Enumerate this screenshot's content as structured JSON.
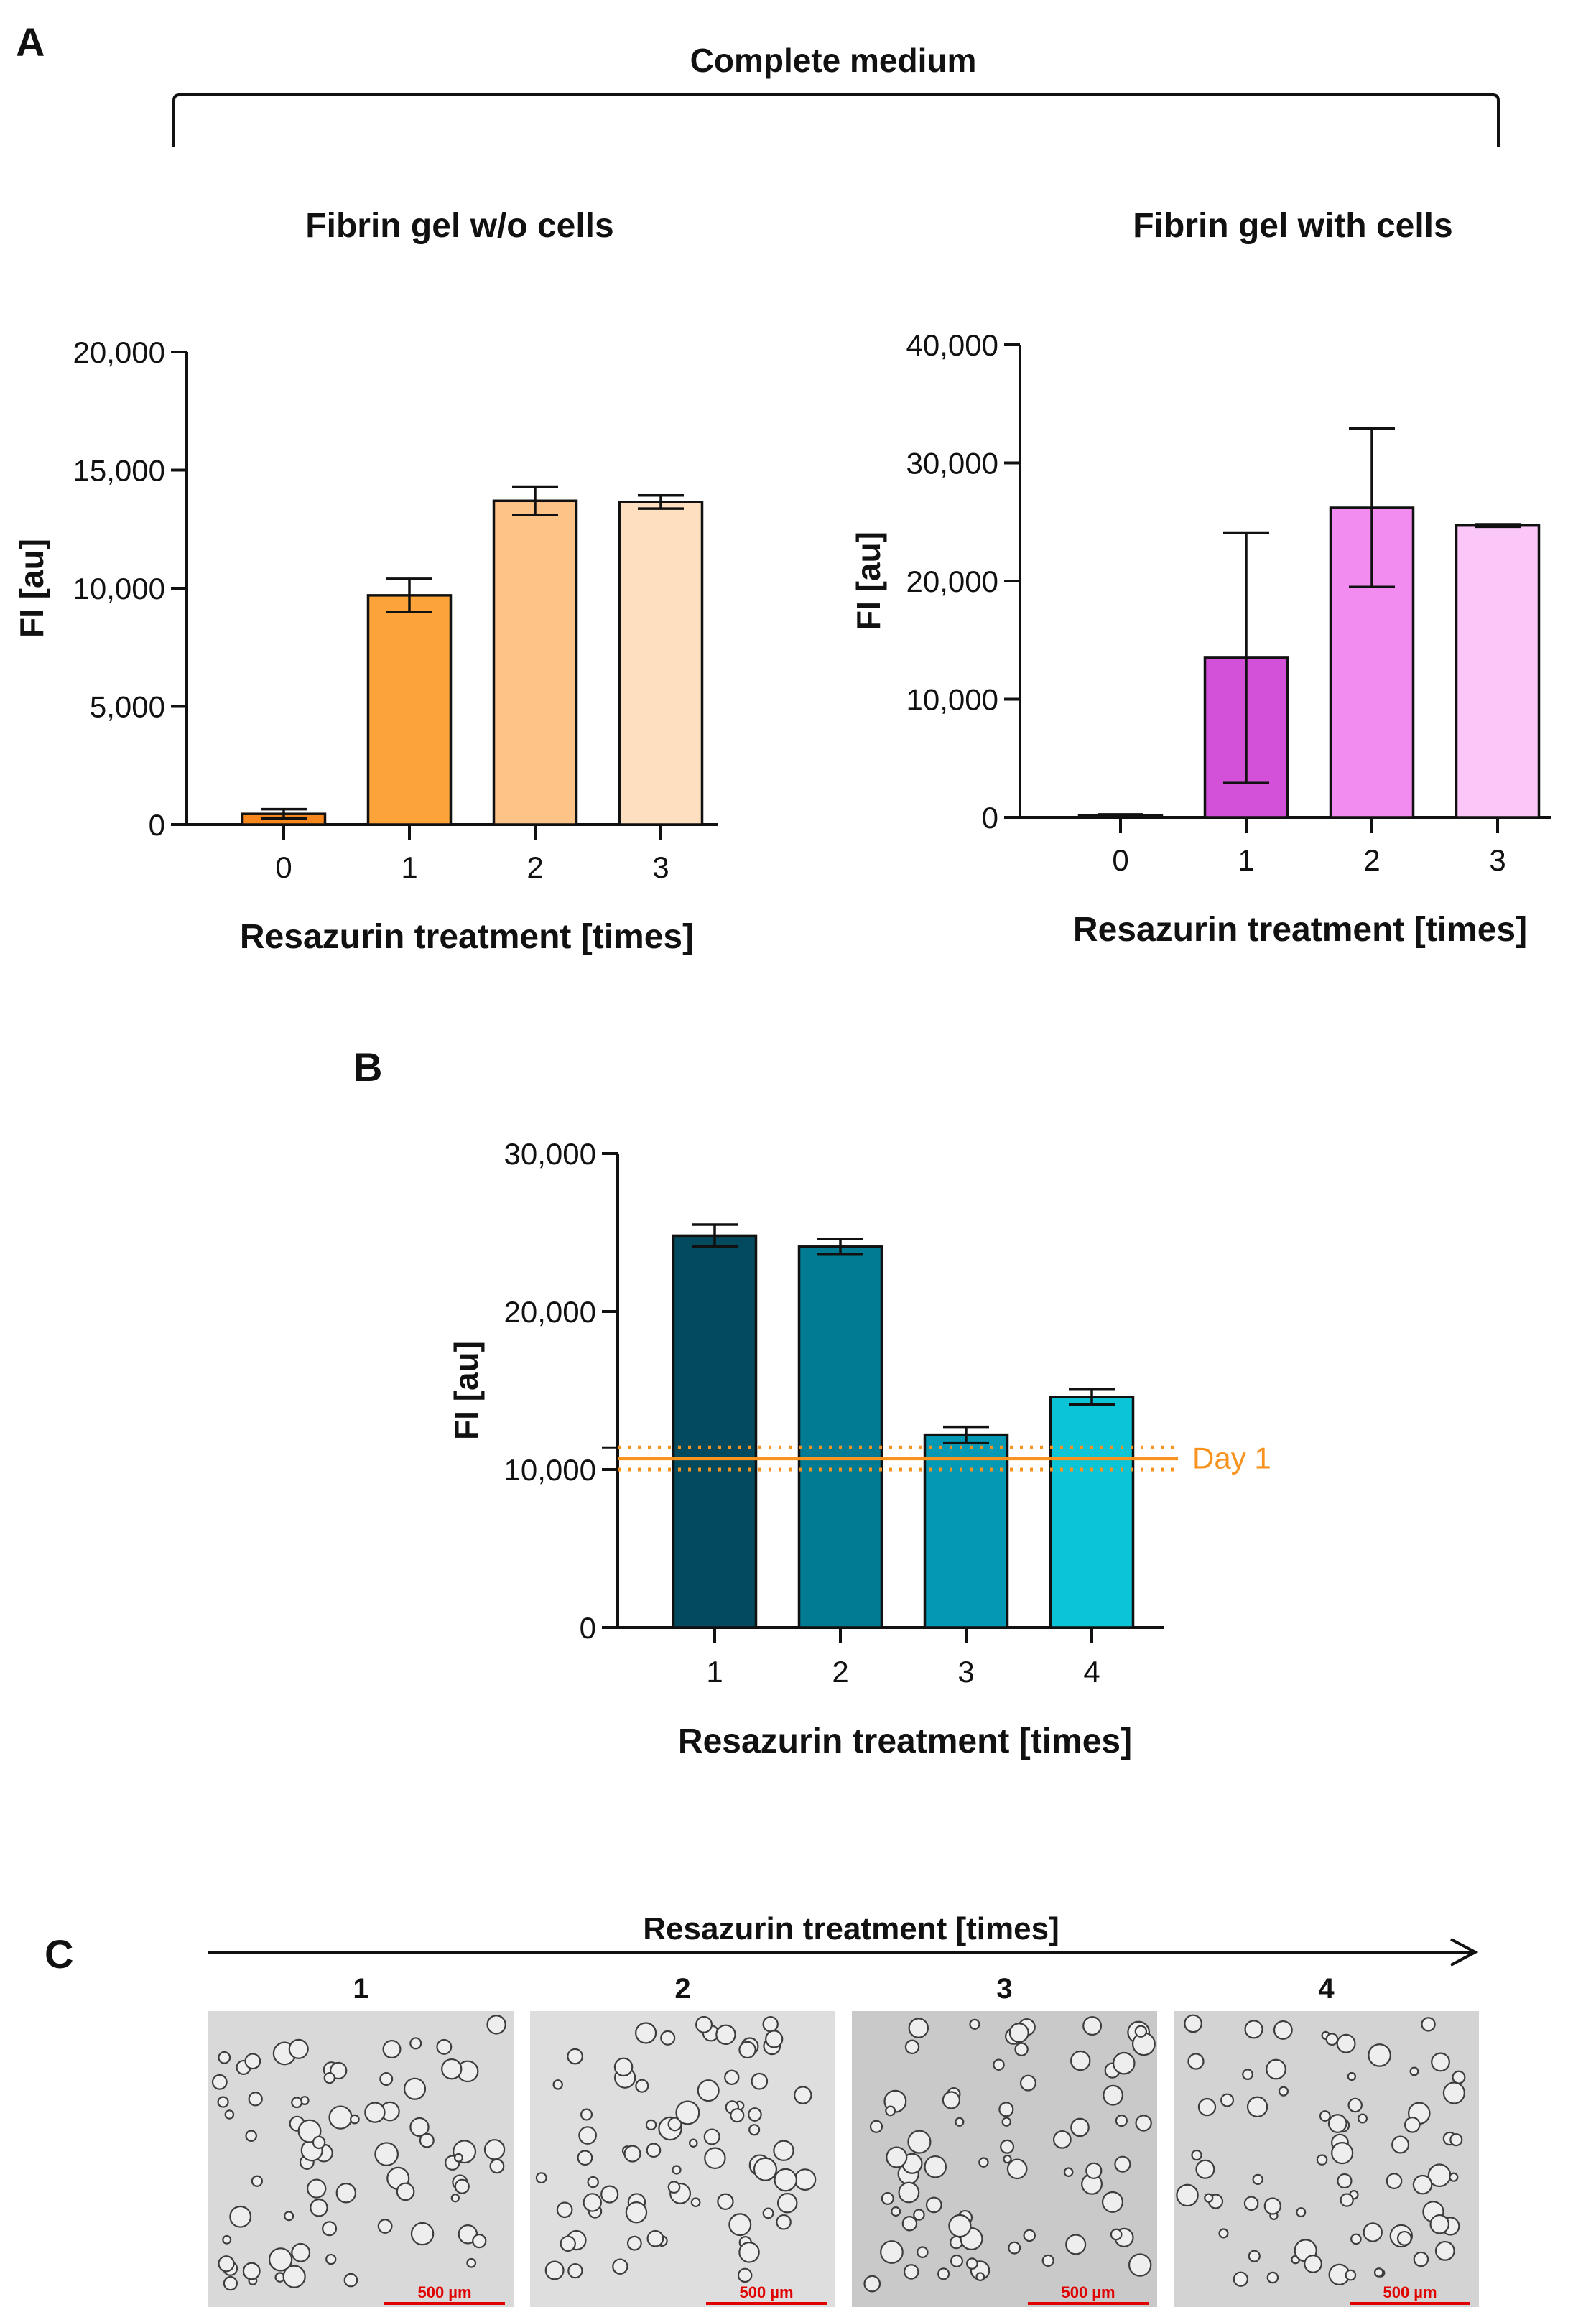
{
  "panels": {
    "a": "A",
    "b": "B",
    "c": "C"
  },
  "section_a": {
    "bracket_title": "Complete medium"
  },
  "section_c": {
    "arrow_title": "Resazurin treatment [times]",
    "scale_label": "500 µm",
    "images": [
      {
        "label": "1",
        "tone": "#d9d9d9"
      },
      {
        "label": "2",
        "tone": "#dedede"
      },
      {
        "label": "3",
        "tone": "#c9c9c9"
      },
      {
        "label": "4",
        "tone": "#d3d3d3"
      }
    ],
    "scale_color": "#e00000"
  },
  "chart_data": [
    {
      "id": "a1",
      "type": "bar",
      "title": "Fibrin gel w/o cells",
      "xlabel": "Resazurin treatment [times]",
      "ylabel": "FI [au]",
      "categories": [
        "0",
        "1",
        "2",
        "3"
      ],
      "values": [
        450,
        9700,
        13700,
        13650
      ],
      "errors": [
        200,
        700,
        600,
        280
      ],
      "ylim": [
        0,
        20000
      ],
      "yticks": [
        0,
        5000,
        10000,
        15000,
        20000
      ],
      "ytick_labels": [
        "0",
        "5,000",
        "10,000",
        "15,000",
        "20,000"
      ],
      "colors": [
        "#f7861c",
        "#fca43a",
        "#fec386",
        "#fee0c0"
      ]
    },
    {
      "id": "a2",
      "type": "bar",
      "title": "Fibrin gel with cells",
      "xlabel": "Resazurin treatment [times]",
      "ylabel": "FI [au]",
      "categories": [
        "0",
        "1",
        "2",
        "3"
      ],
      "values": [
        150,
        13500,
        26200,
        24700
      ],
      "errors": [
        100,
        10600,
        6700,
        100
      ],
      "ylim": [
        0,
        40000
      ],
      "yticks": [
        0,
        10000,
        20000,
        30000,
        40000
      ],
      "ytick_labels": [
        "0",
        "10,000",
        "20,000",
        "30,000",
        "40,000"
      ],
      "colors": [
        "#b44ab8",
        "#d350d8",
        "#f28cf0",
        "#fbc6f8"
      ]
    },
    {
      "id": "b",
      "type": "bar",
      "title": "",
      "xlabel": "Resazurin treatment [times]",
      "ylabel": "FI [au]",
      "categories": [
        "1",
        "2",
        "3",
        "4"
      ],
      "values": [
        24800,
        24100,
        12200,
        14600
      ],
      "errors": [
        700,
        500,
        500,
        500
      ],
      "ylim": [
        0,
        30000
      ],
      "yticks": [
        0,
        10000,
        20000,
        30000
      ],
      "ytick_labels": [
        "0",
        "10,000",
        "20,000",
        "30,000"
      ],
      "colors": [
        "#034a5e",
        "#017b93",
        "#0399b4",
        "#0bc4d6"
      ],
      "reference_line": {
        "label": "Day 1",
        "value": 10700,
        "band": [
          10000,
          11400
        ],
        "color": "#f7931e"
      }
    }
  ]
}
